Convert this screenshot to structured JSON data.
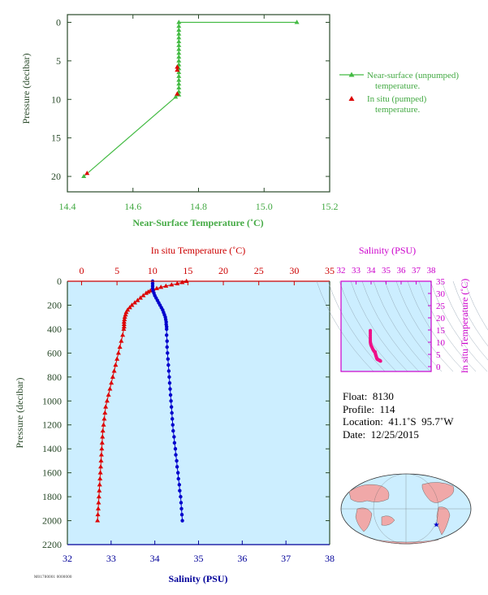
{
  "chart_data": [
    {
      "type": "line",
      "id": "top",
      "xlabel": "Near-Surface Temperature (˚C)",
      "ylabel": "Pressure (decibar)",
      "xlim": [
        14.4,
        15.2
      ],
      "ylim": [
        22,
        -1
      ],
      "xticks": [
        14.4,
        14.6,
        14.8,
        15.0,
        15.2
      ],
      "xtick_labels": [
        "14.4",
        "14.6",
        "14.8",
        "15.0",
        "15.2"
      ],
      "yticks": [
        0,
        5,
        10,
        15,
        20
      ],
      "ytick_labels": [
        "0",
        "5",
        "10",
        "15",
        "20"
      ],
      "colors": {
        "line": "#44bb44",
        "insitu": "#dd0000",
        "axis": "#2a4a2a"
      },
      "legend": [
        {
          "label_lines": [
            "Near-surface (unpumped)",
            "temperature."
          ]
        },
        {
          "label_lines": [
            "In situ (pumped)",
            "temperature."
          ]
        }
      ],
      "series": [
        {
          "x": [
            15.1,
            14.74,
            14.74,
            14.74,
            14.74,
            14.74,
            14.74,
            14.74,
            14.74,
            14.74,
            14.74,
            14.74,
            14.74,
            14.74,
            14.74,
            14.74,
            14.74,
            14.74,
            14.74,
            14.74,
            14.74,
            14.73,
            14.45
          ],
          "y": [
            0,
            0,
            0.5,
            1,
            1.5,
            2,
            2.5,
            3,
            3.5,
            4,
            4.5,
            5,
            5.5,
            6,
            6.5,
            7,
            7.5,
            8,
            8.5,
            9,
            9.4,
            9.7,
            20
          ]
        },
        {
          "x": [
            14.735,
            14.735,
            14.735,
            14.46
          ],
          "y": [
            5.8,
            6.2,
            9.3,
            19.6
          ]
        }
      ]
    },
    {
      "type": "line",
      "id": "main",
      "xlabel": "Salinity (PSU)",
      "ylabel": "Pressure (decibar)",
      "x2label": "In situ Temperature (˚C)",
      "xlim": [
        32,
        38
      ],
      "x2lim": [
        -2,
        35
      ],
      "ylim": [
        2200,
        0
      ],
      "xticks": [
        32,
        33,
        34,
        35,
        36,
        37,
        38
      ],
      "xtick_labels": [
        "32",
        "33",
        "34",
        "35",
        "36",
        "37",
        "38"
      ],
      "x2ticks": [
        0,
        5,
        10,
        15,
        20,
        25,
        30,
        35
      ],
      "x2tick_labels": [
        "0",
        "5",
        "10",
        "15",
        "20",
        "25",
        "30",
        "35"
      ],
      "yticks": [
        0,
        200,
        400,
        600,
        800,
        1000,
        1200,
        1400,
        1600,
        1800,
        2000,
        2200
      ],
      "ytick_labels": [
        "0",
        "200",
        "400",
        "600",
        "800",
        "1000",
        "1200",
        "1400",
        "1600",
        "1800",
        "2000",
        "2200"
      ],
      "colors": {
        "salinity": "#0000cc",
        "temperature": "#dd0000",
        "background": "#cceeff",
        "temp_axis": "#cc0000",
        "sal_axis": "#000099"
      },
      "salinity": {
        "p": [
          0,
          20,
          40,
          60,
          80,
          100,
          120,
          140,
          160,
          180,
          200,
          220,
          240,
          260,
          280,
          300,
          320,
          340,
          360,
          380,
          400,
          450,
          500,
          550,
          600,
          650,
          700,
          750,
          800,
          850,
          900,
          950,
          1000,
          1050,
          1100,
          1150,
          1200,
          1250,
          1300,
          1350,
          1400,
          1450,
          1500,
          1550,
          1600,
          1650,
          1700,
          1750,
          1800,
          1850,
          1900,
          1950,
          2000
        ],
        "s": [
          33.95,
          33.95,
          33.95,
          33.95,
          33.96,
          33.98,
          34.0,
          34.03,
          34.06,
          34.09,
          34.12,
          34.15,
          34.18,
          34.2,
          34.22,
          34.24,
          34.25,
          34.26,
          34.26,
          34.27,
          34.27,
          34.27,
          34.28,
          34.28,
          34.29,
          34.3,
          34.31,
          34.32,
          34.33,
          34.34,
          34.35,
          34.36,
          34.37,
          34.38,
          34.39,
          34.4,
          34.41,
          34.42,
          34.44,
          34.45,
          34.47,
          34.48,
          34.5,
          34.51,
          34.53,
          34.54,
          34.56,
          34.57,
          34.59,
          34.6,
          34.61,
          34.62,
          34.63
        ]
      },
      "temperature": {
        "p": [
          0,
          10,
          20,
          30,
          40,
          50,
          60,
          70,
          80,
          90,
          100,
          120,
          140,
          160,
          180,
          200,
          220,
          240,
          260,
          280,
          300,
          320,
          340,
          360,
          380,
          400,
          450,
          500,
          550,
          600,
          650,
          700,
          750,
          800,
          850,
          900,
          950,
          1000,
          1050,
          1100,
          1150,
          1200,
          1250,
          1300,
          1350,
          1400,
          1450,
          1500,
          1550,
          1600,
          1650,
          1700,
          1750,
          1800,
          1850,
          1900,
          1950,
          2000
        ],
        "t": [
          14.8,
          14.2,
          13.5,
          12.7,
          11.9,
          11.2,
          10.6,
          10.1,
          9.7,
          9.4,
          9.1,
          8.7,
          8.3,
          7.9,
          7.5,
          7.1,
          6.8,
          6.5,
          6.3,
          6.2,
          6.1,
          6.05,
          6.0,
          6.0,
          6.0,
          5.95,
          5.8,
          5.6,
          5.4,
          5.2,
          5.0,
          4.8,
          4.6,
          4.4,
          4.2,
          4.0,
          3.8,
          3.6,
          3.4,
          3.3,
          3.2,
          3.1,
          3.0,
          2.95,
          2.9,
          2.85,
          2.8,
          2.75,
          2.7,
          2.65,
          2.6,
          2.55,
          2.5,
          2.45,
          2.4,
          2.35,
          2.3,
          2.25
        ]
      }
    },
    {
      "type": "scatter",
      "id": "ts",
      "xlabel": "Salinity (PSU)",
      "ylabel": "In situ Temperature (˚C)",
      "xlim": [
        32,
        38
      ],
      "ylim": [
        -2,
        35
      ],
      "xticks": [
        32,
        33,
        34,
        35,
        36,
        37,
        38
      ],
      "xtick_labels": [
        "32",
        "33",
        "34",
        "35",
        "36",
        "37",
        "38"
      ],
      "yticks": [
        0,
        5,
        10,
        15,
        20,
        25,
        30,
        35
      ],
      "ytick_labels": [
        "0",
        "5",
        "10",
        "15",
        "20",
        "25",
        "30",
        "35"
      ],
      "colors": {
        "points": "#ee1188",
        "axis": "#cc00cc",
        "background": "#cceeff",
        "contours": "#8899aa"
      }
    }
  ],
  "float_info": {
    "float": "Float:  8130",
    "profile": "Profile:  114",
    "location": "Location:  41.1˚S  95.7˚W",
    "date": "Date:  12/25/2015"
  },
  "map": {
    "marker_lat": -41.1,
    "marker_lon": -95.7,
    "colors": {
      "ocean": "#cceeff",
      "land": "#f0a8a8",
      "marker": "#0000cc"
    }
  },
  "footer_id": "M01780001 0000000"
}
